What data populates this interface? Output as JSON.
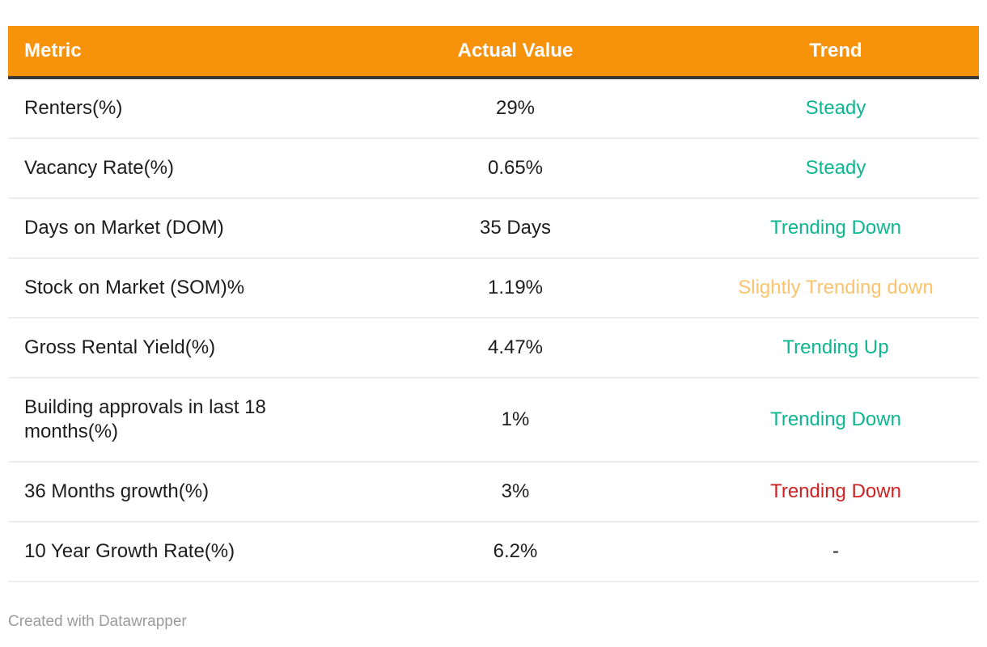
{
  "header": {
    "columns": [
      {
        "label": "Metric"
      },
      {
        "label": "Actual Value"
      },
      {
        "label": "Trend"
      }
    ]
  },
  "table": {
    "rows": [
      {
        "metric": "Renters(%)",
        "value": "29%",
        "trend": "Steady",
        "trend_color": "teal"
      },
      {
        "metric": "Vacancy Rate(%)",
        "value": "0.65%",
        "trend": "Steady",
        "trend_color": "teal"
      },
      {
        "metric": "Days on Market (DOM)",
        "value": "35 Days",
        "trend": "Trending Down",
        "trend_color": "teal"
      },
      {
        "metric": "Stock on Market (SOM)%",
        "value": "1.19%",
        "trend": "Slightly Trending down",
        "trend_color": "amber"
      },
      {
        "metric": "Gross Rental Yield(%)",
        "value": "4.47%",
        "trend": "Trending Up",
        "trend_color": "teal"
      },
      {
        "metric": "Building approvals in last 18 months(%)",
        "value": "1%",
        "trend": "Trending Down",
        "trend_color": "teal"
      },
      {
        "metric": "36 Months growth(%)",
        "value": "3%",
        "trend": "Trending Down",
        "trend_color": "red"
      },
      {
        "metric": "10 Year Growth Rate(%)",
        "value": "6.2%",
        "trend": "-",
        "trend_color": "dark"
      }
    ]
  },
  "footer": {
    "attribution": "Created with Datawrapper"
  },
  "colors": {
    "header_bg": "#F7920B",
    "header_text": "#FFFFFF",
    "header_underline": "#383838",
    "body_text": "#1D1D1D",
    "divider": "#EDEDED",
    "trend_teal": "#0DB690",
    "trend_amber": "#FAC36E",
    "trend_red": "#CE2121",
    "attribution_gray": "#9B9B9B"
  },
  "chart_data": {
    "type": "table",
    "columns": [
      "Metric",
      "Actual Value",
      "Trend"
    ],
    "rows": [
      [
        "Renters(%)",
        "29%",
        "Steady"
      ],
      [
        "Vacancy Rate(%)",
        "0.65%",
        "Steady"
      ],
      [
        "Days on Market (DOM)",
        "35 Days",
        "Trending Down"
      ],
      [
        "Stock on Market (SOM)%",
        "1.19%",
        "Slightly Trending down"
      ],
      [
        "Gross Rental Yield(%)",
        "4.47%",
        "Trending Up"
      ],
      [
        "Building approvals in last 18 months(%)",
        "1%",
        "Trending Down"
      ],
      [
        "36 Months growth(%)",
        "3%",
        "Trending Down"
      ],
      [
        "10 Year Growth Rate(%)",
        "6.2%",
        "-"
      ]
    ],
    "trend_color_by_row": [
      "teal",
      "teal",
      "teal",
      "amber",
      "teal",
      "teal",
      "red",
      "dark"
    ],
    "layout_hints": {
      "metric_align": "left",
      "value_align": "center",
      "trend_align": "center",
      "header_style": "orange band with dark underline"
    }
  }
}
